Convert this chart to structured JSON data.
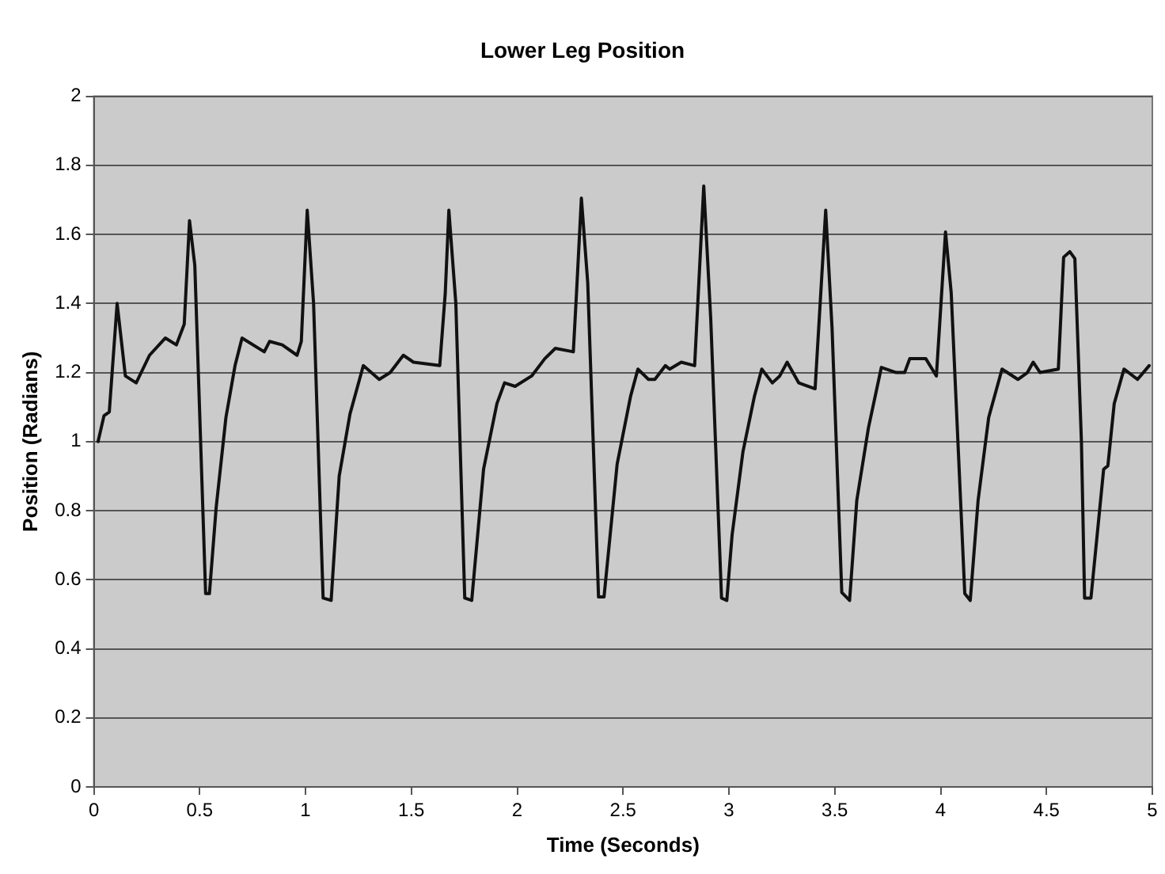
{
  "chart_data": {
    "type": "line",
    "title": "Lower Leg Position",
    "xlabel": "Time (Seconds)",
    "ylabel": "Position (Radians)",
    "xlim": [
      0,
      5
    ],
    "xticks": [
      0,
      0.5,
      1,
      1.5,
      2,
      2.5,
      3,
      3.5,
      4,
      4.5,
      5
    ],
    "ylim": [
      0,
      2
    ],
    "yticks": [
      0,
      0.2,
      0.4,
      0.6,
      0.8,
      1,
      1.2,
      1.4,
      1.6,
      1.8,
      2
    ],
    "grid": "y",
    "legend": false,
    "marker": "none",
    "line_style": "solid",
    "series": [
      {
        "color": "#111111",
        "x": [
          0.02,
          0.048,
          0.073,
          0.11,
          0.149,
          0.2,
          0.263,
          0.338,
          0.39,
          0.427,
          0.452,
          0.477,
          0.528,
          0.546,
          0.578,
          0.624,
          0.667,
          0.7,
          0.805,
          0.83,
          0.89,
          0.96,
          0.98,
          1.008,
          1.038,
          1.083,
          1.121,
          1.159,
          1.21,
          1.273,
          1.348,
          1.4,
          1.462,
          1.51,
          1.634,
          1.66,
          1.677,
          1.71,
          1.752,
          1.785,
          1.841,
          1.904,
          1.94,
          1.99,
          2.068,
          2.13,
          2.18,
          2.265,
          2.28,
          2.303,
          2.333,
          2.384,
          2.41,
          2.472,
          2.535,
          2.57,
          2.62,
          2.65,
          2.7,
          2.72,
          2.775,
          2.838,
          2.881,
          2.914,
          2.965,
          2.99,
          3.015,
          3.066,
          3.12,
          3.155,
          3.205,
          3.24,
          3.275,
          3.33,
          3.407,
          3.457,
          3.487,
          3.533,
          3.57,
          3.604,
          3.659,
          3.72,
          3.79,
          3.83,
          3.854,
          3.93,
          3.98,
          4.023,
          4.05,
          4.114,
          4.14,
          4.177,
          4.227,
          4.29,
          4.365,
          4.41,
          4.437,
          4.47,
          4.556,
          4.581,
          4.61,
          4.634,
          4.665,
          4.68,
          4.71,
          4.77,
          4.79,
          4.82,
          4.866,
          4.93,
          4.985
        ],
        "values": [
          1.0,
          1.075,
          1.086,
          1.4,
          1.19,
          1.17,
          1.25,
          1.3,
          1.28,
          1.34,
          1.64,
          1.51,
          0.56,
          0.56,
          0.81,
          1.07,
          1.22,
          1.3,
          1.26,
          1.29,
          1.28,
          1.25,
          1.29,
          1.67,
          1.4,
          0.547,
          0.54,
          0.9,
          1.08,
          1.22,
          1.18,
          1.2,
          1.25,
          1.23,
          1.22,
          1.43,
          1.67,
          1.4,
          0.547,
          0.54,
          0.92,
          1.11,
          1.17,
          1.16,
          1.19,
          1.24,
          1.27,
          1.26,
          1.43,
          1.705,
          1.46,
          0.55,
          0.55,
          0.935,
          1.13,
          1.21,
          1.18,
          1.18,
          1.22,
          1.21,
          1.23,
          1.22,
          1.74,
          1.355,
          0.547,
          0.54,
          0.73,
          0.97,
          1.13,
          1.21,
          1.17,
          1.19,
          1.23,
          1.17,
          1.153,
          1.67,
          1.33,
          0.563,
          0.54,
          0.83,
          1.04,
          1.215,
          1.2,
          1.2,
          1.24,
          1.24,
          1.19,
          1.607,
          1.43,
          0.56,
          0.54,
          0.83,
          1.07,
          1.21,
          1.18,
          1.2,
          1.23,
          1.2,
          1.21,
          1.534,
          1.55,
          1.53,
          1.0,
          0.547,
          0.547,
          0.92,
          0.93,
          1.11,
          1.21,
          1.18,
          1.22
        ]
      }
    ]
  }
}
